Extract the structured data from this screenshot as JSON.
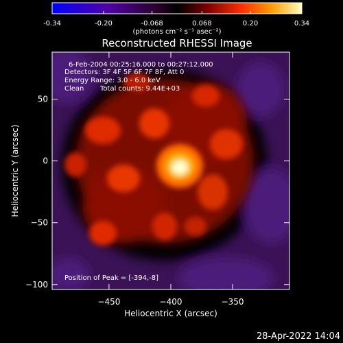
{
  "chart_data": {
    "type": "heatmap",
    "title": "Reconstructed RHESSI Image",
    "colorbar": {
      "min": -0.34,
      "max": 0.34,
      "ticks": [
        "-0.34",
        "-0.20",
        "-0.068",
        "0.068",
        "0.20",
        "0.34"
      ],
      "tick_values": [
        -0.34,
        -0.2,
        -0.068,
        0.068,
        0.2,
        0.34
      ],
      "unit_label": "(photons cm⁻² s⁻¹ asec⁻²)",
      "colormap": [
        "#0000ff",
        "#5000a8",
        "#2a002a",
        "#000000",
        "#7a0000",
        "#ff3000",
        "#ff9c00",
        "#ffffc0"
      ]
    },
    "annotation": {
      "line1": "6-Feb-2004 00:25:16.000 to 00:27:12.000",
      "line2": "Detectors: 3F 4F 5F 6F 7F 8F, Att 0",
      "line3": "Energy Range: 3.0 - 6.0 keV",
      "line4_left": "Clean",
      "line4_right": "Total counts: 9.44E+03",
      "peak": "Position of Peak = [-394,-8]"
    },
    "xlabel": "Heliocentric X (arcsec)",
    "ylabel": "Heliocentric Y (arcsec)",
    "xlim": [
      -496,
      -304
    ],
    "ylim": [
      -104,
      88
    ],
    "x_ticks": [
      -450,
      -400,
      -350
    ],
    "x_tick_labels": [
      "−450",
      "−400",
      "−350"
    ],
    "y_ticks": [
      -100,
      -50,
      0,
      50
    ],
    "y_tick_labels": [
      "−100",
      "−50",
      "0",
      "50"
    ],
    "peak_position": [
      -394,
      -8
    ],
    "timestamp": "28-Apr-2022 14:04"
  }
}
